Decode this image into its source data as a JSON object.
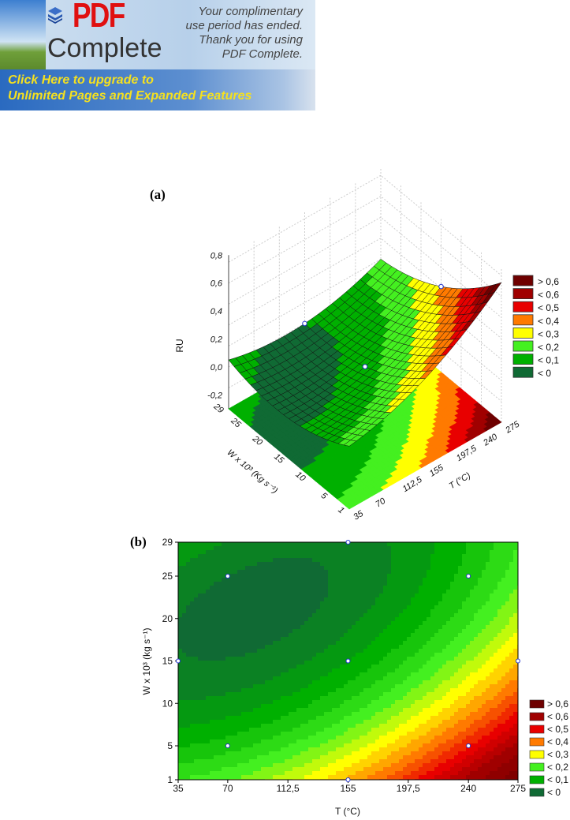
{
  "banner": {
    "brand_top": "PDF",
    "brand_bottom": "Complete",
    "message": [
      "Your complimentary",
      "use period has ended.",
      "Thank you for using",
      "PDF Complete."
    ],
    "upgrade": [
      "Click Here to upgrade to",
      "Unlimited Pages and Expanded Features"
    ]
  },
  "chart_data": [
    {
      "type": "surface3d",
      "title": "(a)",
      "zlabel": "RU",
      "xlabel": "T (°C)",
      "ylabel": "W x 10³ (Kg s⁻¹)",
      "x_ticks": [
        "35",
        "70",
        "112,5",
        "155",
        "197,5",
        "240",
        "275"
      ],
      "x_tick_values": [
        35,
        70,
        112.5,
        155,
        197.5,
        240,
        275
      ],
      "y_ticks": [
        "1",
        "5",
        "10",
        "15",
        "20",
        "25",
        "29"
      ],
      "y_tick_values": [
        1,
        5,
        10,
        15,
        20,
        25,
        29
      ],
      "z_ticks": [
        "-0,2",
        "0,0",
        "0,2",
        "0,4",
        "0,6",
        "0,8"
      ],
      "z_tick_values": [
        -0.2,
        0,
        0.2,
        0.4,
        0.6,
        0.8
      ],
      "zlim": [
        -0.3,
        0.8
      ],
      "legend": [
        "> 0,6",
        "< 0,6",
        "< 0,5",
        "< 0,4",
        "< 0,3",
        "< 0,2",
        "< 0,1",
        "< 0"
      ],
      "legend_position": "right",
      "design_points": [
        [
          155,
          29
        ],
        [
          155,
          15
        ],
        [
          275,
          15
        ]
      ]
    },
    {
      "type": "contour",
      "title": "(b)",
      "xlabel": "T (°C)",
      "ylabel": "W x 10³ (kg s⁻¹)",
      "x_ticks": [
        "35",
        "70",
        "112,5",
        "155",
        "197,5",
        "240",
        "275"
      ],
      "x_tick_values": [
        35,
        70,
        112.5,
        155,
        197.5,
        240,
        275
      ],
      "xlim": [
        35,
        275
      ],
      "y_ticks": [
        "1",
        "5",
        "10",
        "15",
        "20",
        "25",
        "29"
      ],
      "y_tick_values": [
        1,
        5,
        10,
        15,
        20,
        25,
        29
      ],
      "ylim": [
        1,
        29
      ],
      "legend": [
        "> 0,6",
        "< 0,6",
        "< 0,5",
        "< 0,4",
        "< 0,3",
        "< 0,2",
        "< 0,1",
        "< 0"
      ],
      "legend_position": "bottom-right",
      "design_points": [
        [
          70,
          25
        ],
        [
          240,
          25
        ],
        [
          155,
          29
        ],
        [
          35,
          15
        ],
        [
          155,
          15
        ],
        [
          275,
          15
        ],
        [
          70,
          5
        ],
        [
          240,
          5
        ],
        [
          155,
          1
        ]
      ]
    }
  ],
  "level_colors": [
    "#6e0000",
    "#a00000",
    "#e80000",
    "#ff7a00",
    "#ffff00",
    "#44f020",
    "#00b000",
    "#106a34"
  ]
}
